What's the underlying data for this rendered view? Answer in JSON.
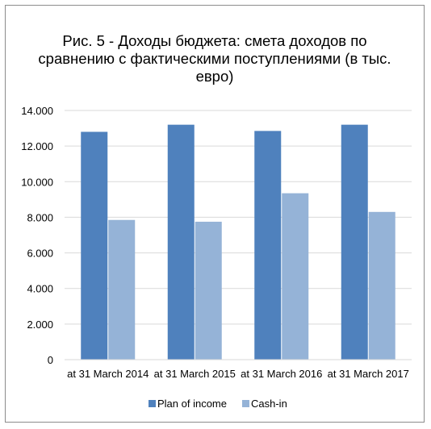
{
  "chart_data": {
    "type": "bar",
    "title": "Рис. 5 - Доходы бюджета: смета доходов по сравнению с фактическими поступлениями (в тыс. евро)",
    "categories": [
      "at 31 March 2014",
      "at 31 March 2015",
      "at 31 March 2016",
      "at 31 March 2017"
    ],
    "series": [
      {
        "name": "Plan of income",
        "color": "#4f81bd",
        "values": [
          12800,
          13200,
          12850,
          13200
        ]
      },
      {
        "name": "Cash-in",
        "color": "#95b3d7",
        "values": [
          7850,
          7750,
          9350,
          8300
        ]
      }
    ],
    "ylim": [
      0,
      14000
    ],
    "yticks": [
      "0",
      "2.000",
      "4.000",
      "6.000",
      "8.000",
      "10.000",
      "12.000",
      "14.000"
    ],
    "grid": true,
    "legend_position": "bottom"
  }
}
